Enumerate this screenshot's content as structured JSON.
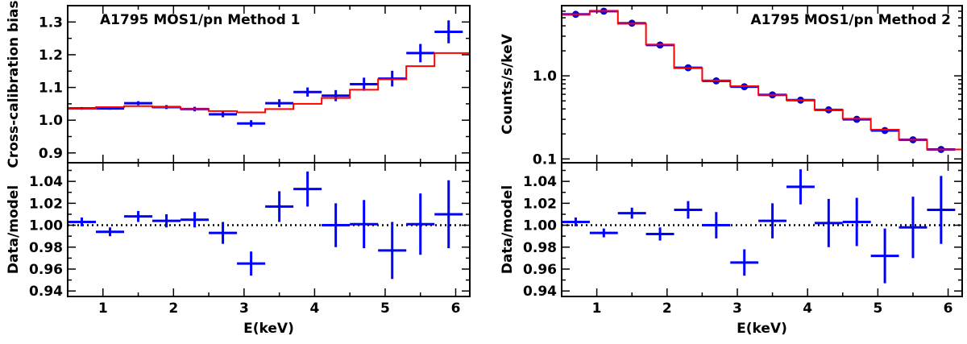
{
  "chart_data": [
    {
      "type": "line",
      "panel": "upper",
      "title": "A1795 MOS1/pn Method 1",
      "xlabel": "",
      "ylabel": "Cross-calibration bias",
      "xlim": [
        0.5,
        6.2
      ],
      "ylim": [
        0.87,
        1.35
      ],
      "yscale": "linear",
      "yticks": [
        "0.9",
        "1.0",
        "1.1",
        "1.2",
        "1.3"
      ],
      "yticks_values": [
        0.9,
        1.0,
        1.1,
        1.2,
        1.3
      ],
      "series": [
        {
          "kind": "data",
          "color": "#0000ff",
          "x": [
            0.7,
            1.1,
            1.5,
            1.9,
            2.3,
            2.7,
            3.1,
            3.5,
            3.9,
            4.3,
            4.7,
            5.1,
            5.5,
            5.9
          ],
          "xerr": [
            0.2,
            0.2,
            0.2,
            0.2,
            0.2,
            0.2,
            0.2,
            0.2,
            0.2,
            0.2,
            0.2,
            0.2,
            0.2,
            0.2
          ],
          "y": [
            1.036,
            1.036,
            1.052,
            1.04,
            1.034,
            1.018,
            0.99,
            1.052,
            1.086,
            1.075,
            1.11,
            1.127,
            1.205,
            1.27
          ],
          "yerr": [
            0.004,
            0.004,
            0.006,
            0.006,
            0.007,
            0.009,
            0.01,
            0.012,
            0.014,
            0.017,
            0.02,
            0.024,
            0.028,
            0.035
          ]
        },
        {
          "kind": "model",
          "color": "#ff0000",
          "x": [
            0.5,
            0.9,
            1.3,
            1.7,
            2.1,
            2.5,
            2.9,
            3.3,
            3.7,
            4.1,
            4.5,
            4.9,
            5.3,
            5.7,
            6.2
          ],
          "y": [
            1.035,
            1.04,
            1.043,
            1.04,
            1.034,
            1.028,
            1.024,
            1.034,
            1.05,
            1.068,
            1.093,
            1.125,
            1.165,
            1.205,
            1.26
          ]
        }
      ]
    },
    {
      "type": "line",
      "panel": "lower",
      "xlabel": "E(keV)",
      "ylabel": "Data/model",
      "xlim": [
        0.5,
        6.2
      ],
      "ylim": [
        0.935,
        1.057
      ],
      "xticks": [
        "1",
        "2",
        "3",
        "4",
        "5",
        "6"
      ],
      "xticks_values": [
        1,
        2,
        3,
        4,
        5,
        6
      ],
      "yticks": [
        "0.94",
        "0.96",
        "0.98",
        "1.00",
        "1.02",
        "1.04"
      ],
      "yticks_values": [
        0.94,
        0.96,
        0.98,
        1.0,
        1.02,
        1.04
      ],
      "reference_line": 1.0,
      "series": [
        {
          "kind": "data",
          "color": "#0000ff",
          "x": [
            0.7,
            1.1,
            1.5,
            1.9,
            2.3,
            2.7,
            3.1,
            3.5,
            3.9,
            4.3,
            4.7,
            5.1,
            5.5,
            5.9
          ],
          "xerr": [
            0.2,
            0.2,
            0.2,
            0.2,
            0.2,
            0.2,
            0.2,
            0.2,
            0.2,
            0.2,
            0.2,
            0.2,
            0.2,
            0.2
          ],
          "y": [
            1.003,
            0.994,
            1.008,
            1.004,
            1.005,
            0.993,
            0.965,
            1.017,
            1.033,
            1.0,
            1.001,
            0.977,
            1.001,
            1.01
          ],
          "yerr": [
            0.004,
            0.004,
            0.005,
            0.006,
            0.007,
            0.01,
            0.011,
            0.014,
            0.016,
            0.02,
            0.022,
            0.026,
            0.028,
            0.031
          ]
        }
      ]
    },
    {
      "type": "line",
      "panel": "upper",
      "title": "A1795 MOS1/pn Method 2",
      "xlabel": "",
      "ylabel": "Counts/s/keV",
      "xlim": [
        0.5,
        6.2
      ],
      "ylim": [
        0.09,
        7.0
      ],
      "yscale": "log",
      "yticks": [
        "0.1",
        "1.0"
      ],
      "yticks_values": [
        0.1,
        1.0
      ],
      "series": [
        {
          "kind": "data",
          "color": "#0000ff",
          "x": [
            0.7,
            1.1,
            1.5,
            1.9,
            2.3,
            2.7,
            3.1,
            3.5,
            3.9,
            4.3,
            4.7,
            5.1,
            5.5,
            5.9
          ],
          "xerr": [
            0.2,
            0.2,
            0.2,
            0.2,
            0.2,
            0.2,
            0.2,
            0.2,
            0.2,
            0.2,
            0.2,
            0.2,
            0.2,
            0.2
          ],
          "y": [
            5.5,
            6.0,
            4.3,
            2.35,
            1.25,
            0.87,
            0.74,
            0.59,
            0.51,
            0.39,
            0.3,
            0.22,
            0.17,
            0.13
          ]
        },
        {
          "kind": "model",
          "color": "#ff0000",
          "x": [
            0.5,
            0.9,
            1.3,
            1.7,
            2.1,
            2.5,
            2.9,
            3.3,
            3.7,
            4.1,
            4.5,
            4.9,
            5.3,
            5.7,
            6.2
          ],
          "y": [
            5.5,
            6.05,
            4.25,
            2.38,
            1.24,
            0.88,
            0.75,
            0.59,
            0.51,
            0.39,
            0.305,
            0.225,
            0.17,
            0.13,
            0.13
          ]
        }
      ]
    },
    {
      "type": "line",
      "panel": "lower",
      "xlabel": "E(keV)",
      "ylabel": "Data/model",
      "xlim": [
        0.5,
        6.2
      ],
      "ylim": [
        0.935,
        1.057
      ],
      "xticks": [
        "1",
        "2",
        "3",
        "4",
        "5",
        "6"
      ],
      "xticks_values": [
        1,
        2,
        3,
        4,
        5,
        6
      ],
      "yticks": [
        "0.94",
        "0.96",
        "0.98",
        "1.00",
        "1.02",
        "1.04"
      ],
      "yticks_values": [
        0.94,
        0.96,
        0.98,
        1.0,
        1.02,
        1.04
      ],
      "reference_line": 1.0,
      "series": [
        {
          "kind": "data",
          "color": "#0000ff",
          "x": [
            0.7,
            1.1,
            1.5,
            1.9,
            2.3,
            2.7,
            3.1,
            3.5,
            3.9,
            4.3,
            4.7,
            5.1,
            5.5,
            5.9
          ],
          "xerr": [
            0.2,
            0.2,
            0.2,
            0.2,
            0.2,
            0.2,
            0.2,
            0.2,
            0.2,
            0.2,
            0.2,
            0.2,
            0.2,
            0.2
          ],
          "y": [
            1.003,
            0.993,
            1.011,
            0.992,
            1.014,
            1.0,
            0.966,
            1.004,
            1.035,
            1.002,
            1.003,
            0.972,
            0.998,
            1.014
          ],
          "yerr": [
            0.004,
            0.004,
            0.005,
            0.006,
            0.008,
            0.012,
            0.012,
            0.016,
            0.016,
            0.022,
            0.022,
            0.025,
            0.028,
            0.031
          ]
        }
      ]
    }
  ]
}
